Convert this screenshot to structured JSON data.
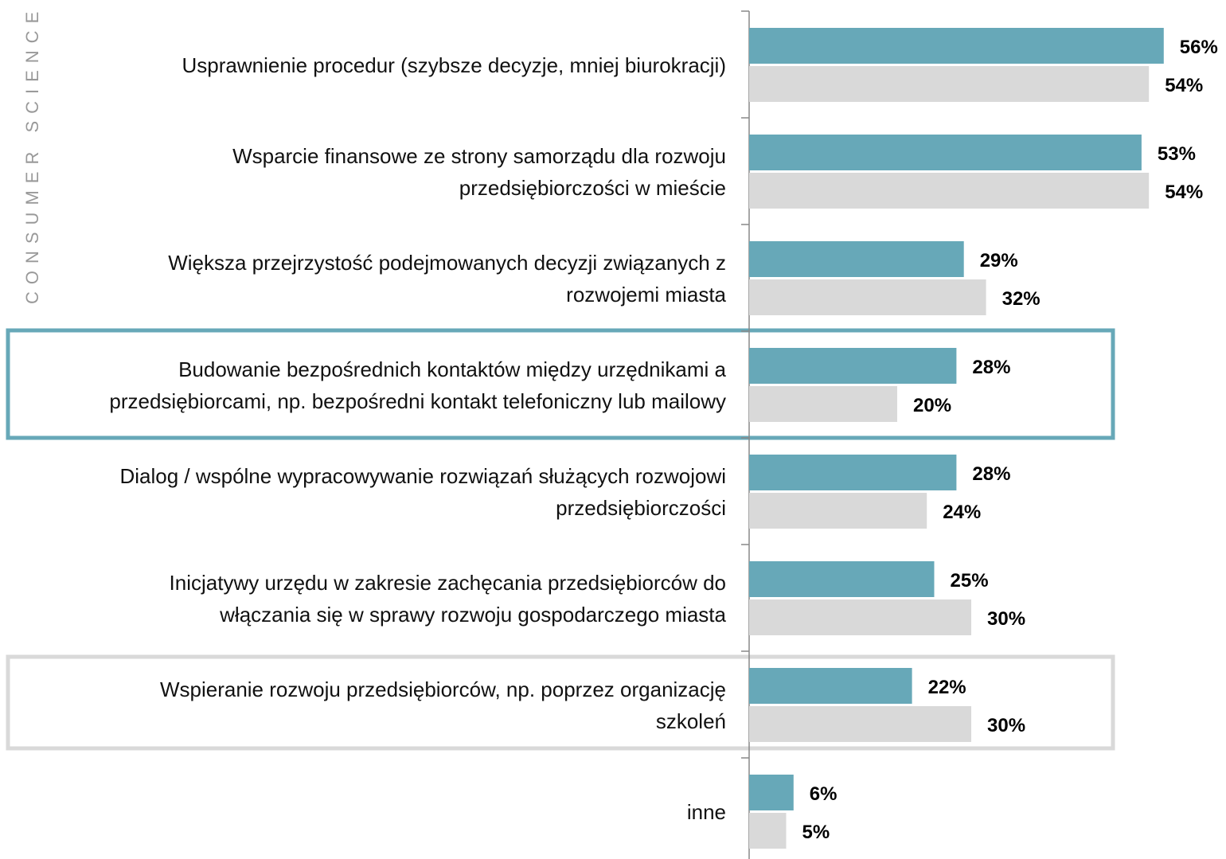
{
  "chart_data": {
    "type": "bar",
    "orientation": "horizontal",
    "watermark": "CONSUMER SCIENCE",
    "categories": [
      "Usprawnienie procedur (szybsze decyzje, mniej biurokracji)",
      "Wsparcie finansowe ze strony samorządu dla rozwoju\nprzedsiębiorczości w mieście",
      "Większa przejrzystość podejmowanych decyzji związanych z\nrozwojemi miasta",
      "Budowanie bezpośrednich kontaktów między urzędnikami a\nprzedsiębiorcami, np. bezpośredni kontakt telefoniczny lub mailowy",
      "Dialog / wspólne wypracowywanie rozwiązań służących rozwojowi\nprzedsiębiorczości",
      "Inicjatywy urzędu w zakresie zachęcania przedsiębiorców do\nwłączania się w sprawy rozwoju gospodarczego miasta",
      "Wspieranie rozwoju przedsiębiorców, np. poprzez organizację\nszkoleń",
      "inne"
    ],
    "series": [
      {
        "color": "#67a8b8",
        "values": [
          56,
          53,
          29,
          28,
          28,
          25,
          22,
          6
        ],
        "value_labels": [
          "56%",
          "53%",
          "29%",
          "28%",
          "28%",
          "25%",
          "22%",
          "6%"
        ]
      },
      {
        "color": "#d9d9d9",
        "values": [
          54,
          54,
          32,
          20,
          24,
          30,
          30,
          5
        ],
        "value_labels": [
          "54%",
          "54%",
          "32%",
          "20%",
          "24%",
          "30%",
          "30%",
          "5%"
        ]
      }
    ],
    "xlim": [
      0,
      60
    ]
  }
}
